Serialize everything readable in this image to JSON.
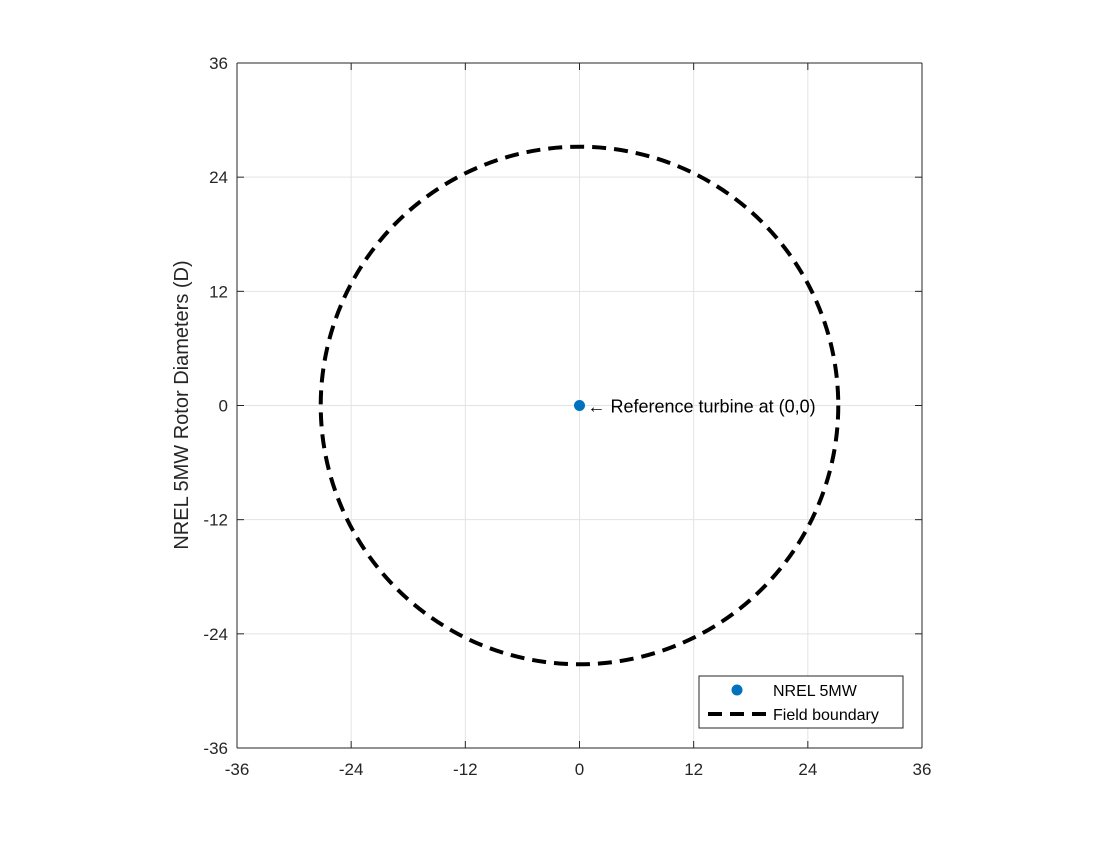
{
  "chart_data": {
    "type": "scatter",
    "title": "",
    "xlabel": "",
    "ylabel": "NREL 5MW Rotor Diameters (D)",
    "xlim": [
      -36,
      36
    ],
    "ylim": [
      -36,
      36
    ],
    "xticks": [
      -36,
      -24,
      -12,
      0,
      12,
      24,
      36
    ],
    "yticks": [
      -36,
      -24,
      -12,
      0,
      12,
      24,
      36
    ],
    "xtick_labels": [
      "-36",
      "-24",
      "-12",
      "0",
      "12",
      "24",
      "36"
    ],
    "ytick_labels": [
      "-36",
      "-24",
      "-12",
      "0",
      "12",
      "24",
      "36"
    ],
    "grid": true,
    "series": [
      {
        "name": "NREL 5MW",
        "style": "marker",
        "color": "#0072BD",
        "points": [
          {
            "x": 0,
            "y": 0
          }
        ]
      },
      {
        "name": "Field boundary",
        "style": "dashed-line",
        "color": "#000000",
        "shape": "circle",
        "center": [
          0,
          0
        ],
        "radius": 27.2
      }
    ],
    "annotations": [
      {
        "text": "← Reference turbine at (0,0)",
        "x": 0,
        "y": 0
      }
    ],
    "legend": {
      "placement": "bottom-right",
      "entries": [
        "NREL 5MW",
        "Field boundary"
      ]
    }
  }
}
